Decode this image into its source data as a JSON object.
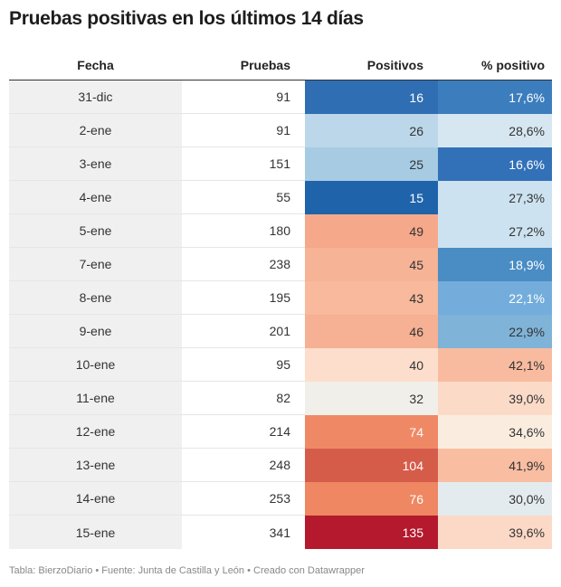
{
  "title": "Pruebas positivas en los últimos 14 días",
  "footer": "Tabla: BierzoDiario • Fuente: Junta de Castilla y León • Creado con Datawrapper",
  "chart_data": {
    "type": "table",
    "title": "Pruebas positivas en los últimos 14 días",
    "columns": [
      "Fecha",
      "Pruebas",
      "Positivos",
      "% positivo"
    ],
    "rows": [
      {
        "fecha": "31-dic",
        "pruebas": "91",
        "positivos": "16",
        "pct": "17,6%",
        "pos_bg": "#2f6eb3",
        "pos_fg": "#ffffff",
        "pct_bg": "#3c7dbd",
        "pct_fg": "#ffffff"
      },
      {
        "fecha": "2-ene",
        "pruebas": "91",
        "positivos": "26",
        "pct": "28,6%",
        "pos_bg": "#bcd7ea",
        "pos_fg": "#333333",
        "pct_bg": "#d7e7f1",
        "pct_fg": "#333333"
      },
      {
        "fecha": "3-ene",
        "pruebas": "151",
        "positivos": "25",
        "pct": "16,6%",
        "pos_bg": "#a6cbe2",
        "pos_fg": "#333333",
        "pct_bg": "#3271b7",
        "pct_fg": "#ffffff"
      },
      {
        "fecha": "4-ene",
        "pruebas": "55",
        "positivos": "15",
        "pct": "27,3%",
        "pos_bg": "#1f63ab",
        "pos_fg": "#ffffff",
        "pct_bg": "#cde2f0",
        "pct_fg": "#333333"
      },
      {
        "fecha": "5-ene",
        "pruebas": "180",
        "positivos": "49",
        "pct": "27,2%",
        "pos_bg": "#f5a98a",
        "pos_fg": "#333333",
        "pct_bg": "#cde2f0",
        "pct_fg": "#333333"
      },
      {
        "fecha": "7-ene",
        "pruebas": "238",
        "positivos": "45",
        "pct": "18,9%",
        "pos_bg": "#f7b396",
        "pos_fg": "#333333",
        "pct_bg": "#4a8cc4",
        "pct_fg": "#ffffff"
      },
      {
        "fecha": "8-ene",
        "pruebas": "195",
        "positivos": "43",
        "pct": "22,1%",
        "pos_bg": "#f8b99c",
        "pos_fg": "#333333",
        "pct_bg": "#74addb",
        "pct_fg": "#ffffff"
      },
      {
        "fecha": "9-ene",
        "pruebas": "201",
        "positivos": "46",
        "pct": "22,9%",
        "pos_bg": "#f6b093",
        "pos_fg": "#333333",
        "pct_bg": "#7fb3d8",
        "pct_fg": "#333333"
      },
      {
        "fecha": "10-ene",
        "pruebas": "95",
        "positivos": "40",
        "pct": "42,1%",
        "pos_bg": "#fddecc",
        "pos_fg": "#333333",
        "pct_bg": "#f9bba0",
        "pct_fg": "#333333"
      },
      {
        "fecha": "11-ene",
        "pruebas": "82",
        "positivos": "32",
        "pct": "39,0%",
        "pos_bg": "#f0efe9",
        "pos_fg": "#333333",
        "pct_bg": "#fbdbc8",
        "pct_fg": "#333333"
      },
      {
        "fecha": "12-ene",
        "pruebas": "214",
        "positivos": "74",
        "pct": "34,6%",
        "pos_bg": "#ef8965",
        "pos_fg": "#ffffff",
        "pct_bg": "#faede0",
        "pct_fg": "#333333"
      },
      {
        "fecha": "13-ene",
        "pruebas": "248",
        "positivos": "104",
        "pct": "41,9%",
        "pos_bg": "#d65c4a",
        "pos_fg": "#ffffff",
        "pct_bg": "#f9bda2",
        "pct_fg": "#333333"
      },
      {
        "fecha": "14-ene",
        "pruebas": "253",
        "positivos": "76",
        "pct": "30,0%",
        "pos_bg": "#ee8762",
        "pos_fg": "#ffffff",
        "pct_bg": "#e3ebee",
        "pct_fg": "#333333"
      },
      {
        "fecha": "15-ene",
        "pruebas": "341",
        "positivos": "135",
        "pct": "39,6%",
        "pos_bg": "#b4192d",
        "pos_fg": "#ffffff",
        "pct_bg": "#fbd9c6",
        "pct_fg": "#333333"
      }
    ]
  }
}
